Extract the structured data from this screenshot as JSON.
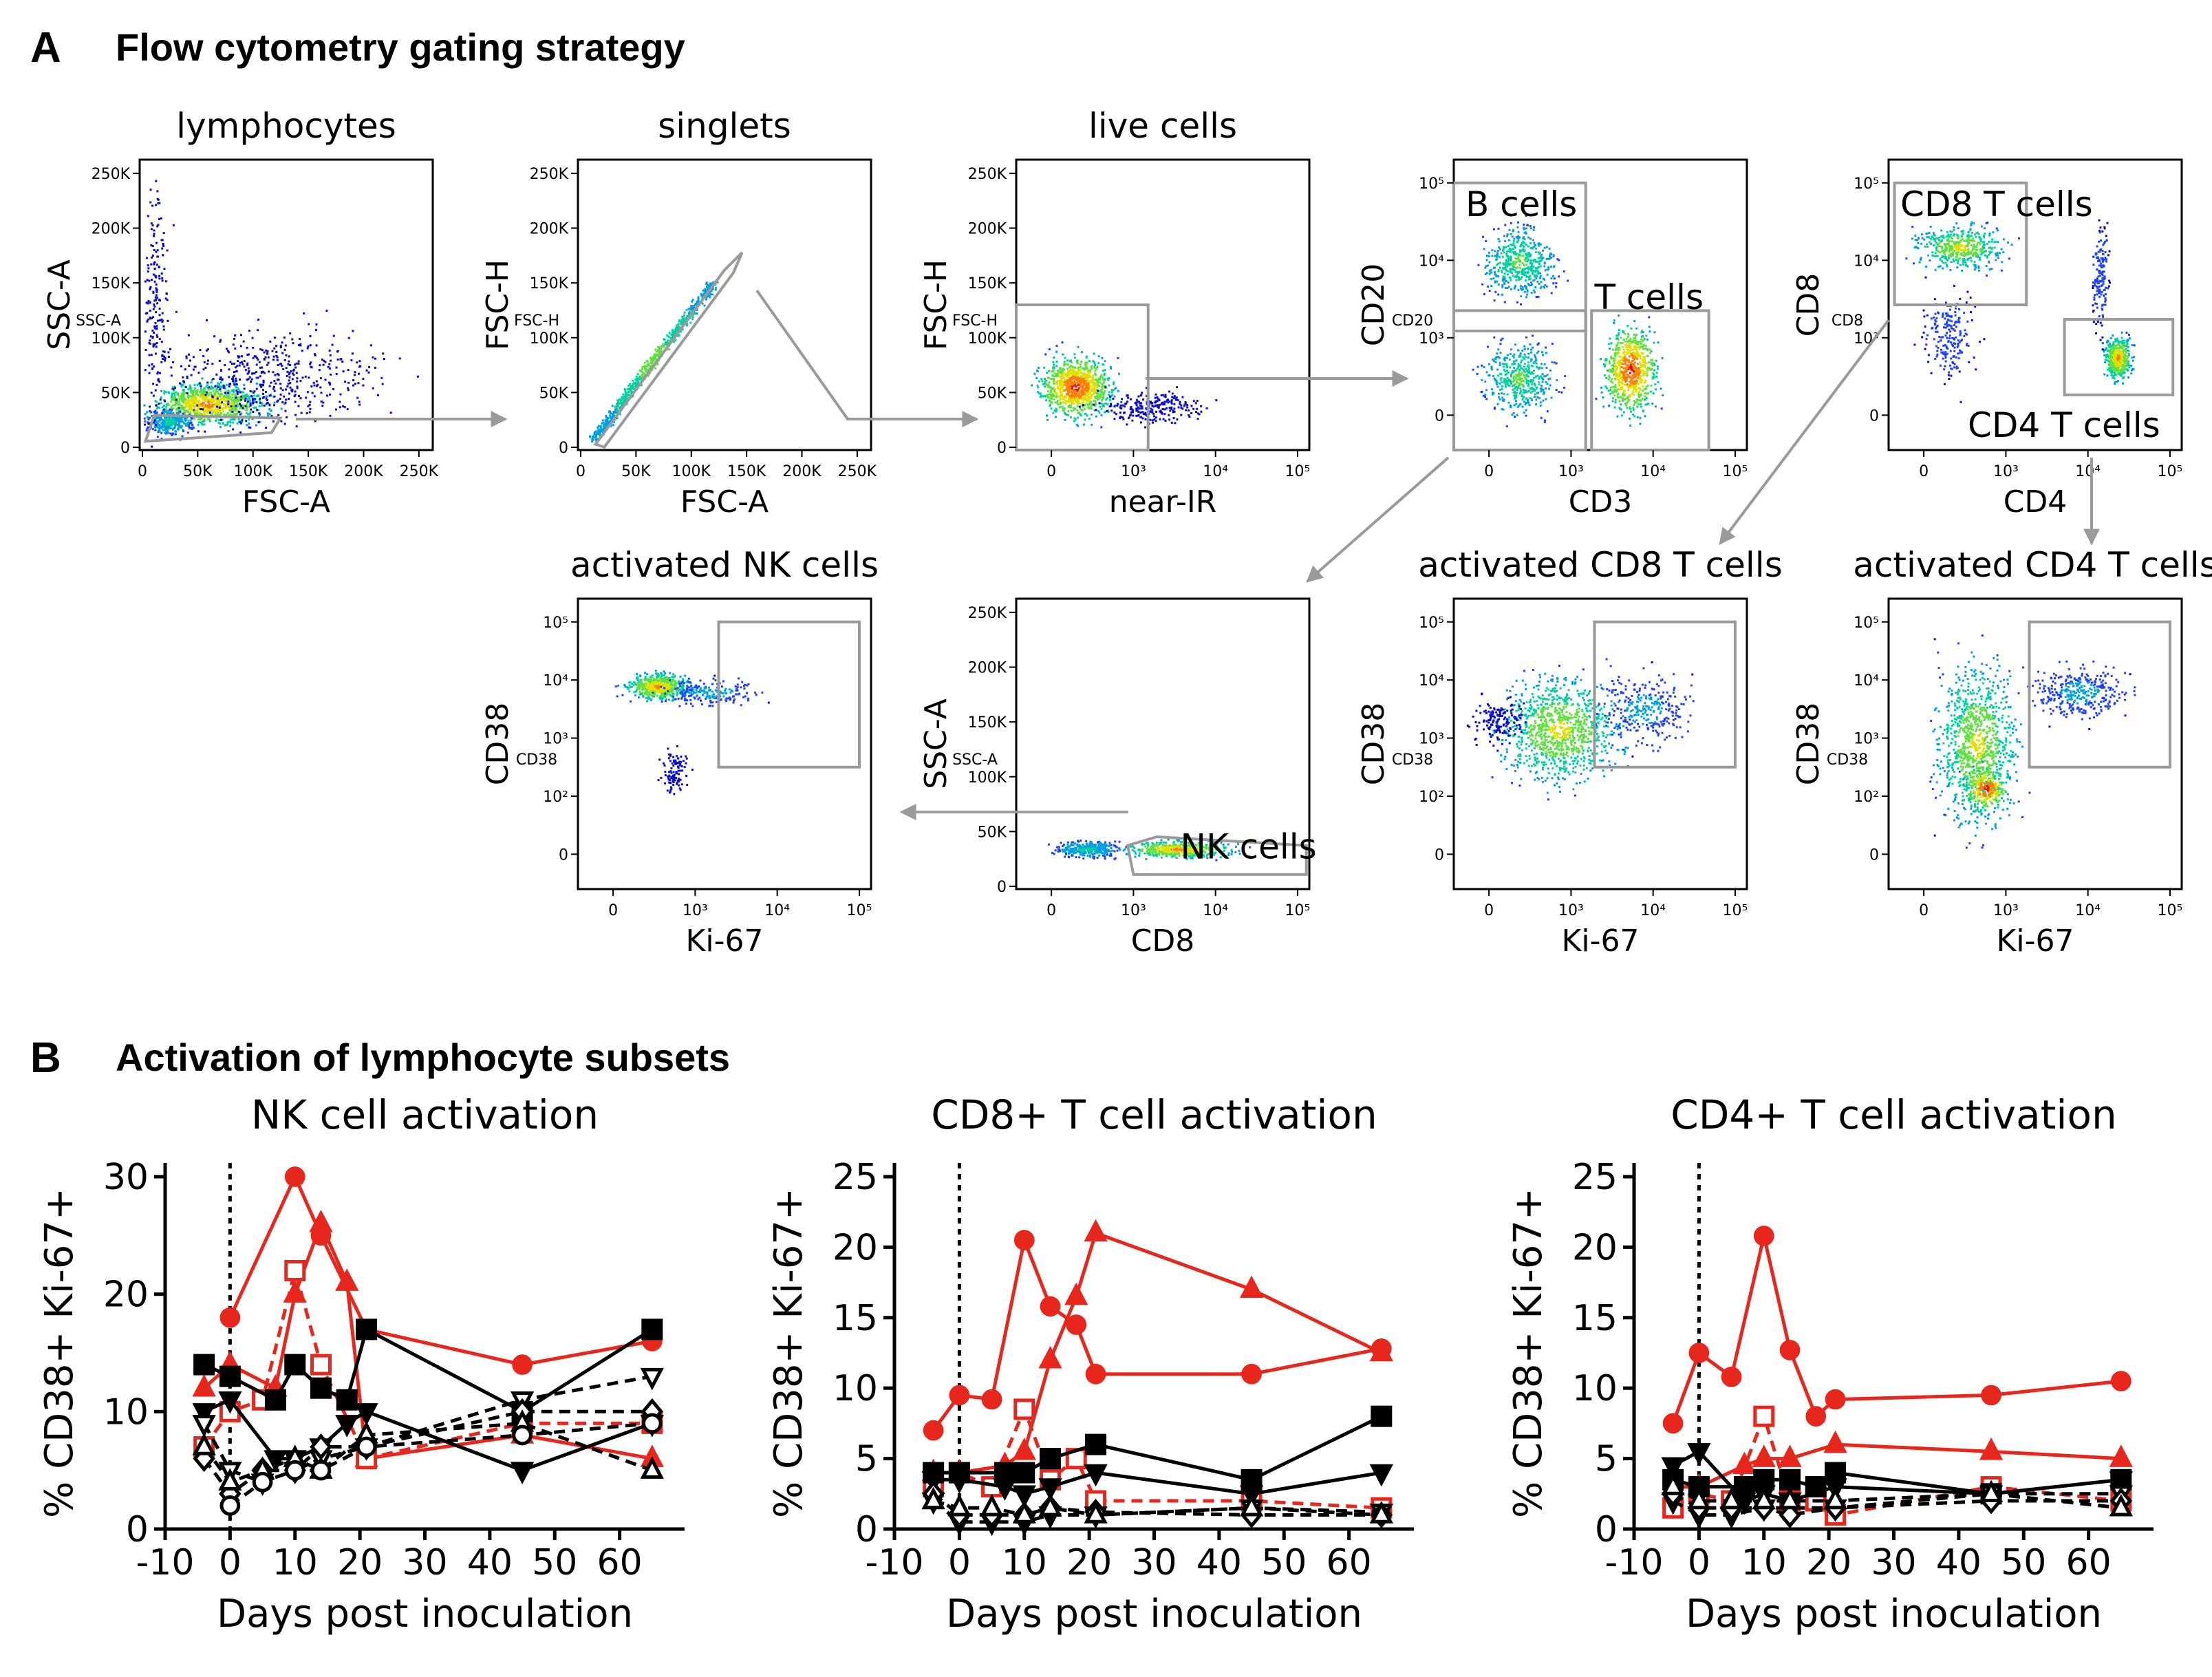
{
  "panelA": {
    "letter": "A",
    "title": "Flow cytometry gating strategy",
    "plots": [
      {
        "id": "lymphocytes",
        "title": "lymphocytes",
        "xlabel": "FSC-A",
        "ylabel": "SSC-A",
        "ylabel2": "SSC-A",
        "xticks": [
          "0",
          "50K",
          "100K",
          "150K",
          "200K",
          "250K"
        ],
        "yticks": [
          "0",
          "50K",
          "100K",
          "150K",
          "200K",
          "250K"
        ]
      },
      {
        "id": "singlets",
        "title": "singlets",
        "xlabel": "FSC-A",
        "ylabel": "FSC-H",
        "ylabel2": "FSC-H",
        "xticks": [
          "0",
          "50K",
          "100K",
          "150K",
          "200K",
          "250K"
        ],
        "yticks": [
          "0",
          "50K",
          "100K",
          "150K",
          "200K",
          "250K"
        ]
      },
      {
        "id": "live",
        "title": "live cells",
        "xlabel": "near-IR",
        "ylabel": "FSC-H",
        "ylabel2": "FSC-H",
        "xticks": [
          "0",
          "10³",
          "10⁴",
          "10⁵"
        ],
        "yticks": [
          "0",
          "50K",
          "100K",
          "150K",
          "200K",
          "250K"
        ]
      },
      {
        "id": "bt",
        "title": "",
        "xlabel": "CD3",
        "ylabel": "CD20",
        "ylabel2": "CD20",
        "gate1": "B cells",
        "gate2": "T cells",
        "xticks": [
          "0",
          "10³",
          "10⁴",
          "10⁵"
        ],
        "yticks": [
          "0",
          "10³",
          "10⁴",
          "10⁵"
        ]
      },
      {
        "id": "cd8cd4",
        "title": "",
        "xlabel": "CD4",
        "ylabel": "CD8",
        "ylabel2": "CD8",
        "gate1": "CD8 T cells",
        "gate2": "CD4 T cells",
        "xticks": [
          "0",
          "10³",
          "10⁴",
          "10⁵"
        ],
        "yticks": [
          "0",
          "10³",
          "10⁴",
          "10⁵"
        ]
      },
      {
        "id": "actnk",
        "title": "activated NK cells",
        "xlabel": "Ki-67",
        "ylabel": "CD38",
        "ylabel2": "CD38",
        "xticks": [
          "0",
          "10³",
          "10⁴",
          "10⁵"
        ],
        "yticks": [
          "0",
          "10²",
          "10³",
          "10⁴",
          "10⁵"
        ]
      },
      {
        "id": "nk",
        "title": "",
        "xlabel": "CD8",
        "ylabel": "SSC-A",
        "ylabel2": "SSC-A",
        "gate1": "NK cells",
        "xticks": [
          "0",
          "10³",
          "10⁴",
          "10⁵"
        ],
        "yticks": [
          "0",
          "50K",
          "100K",
          "150K",
          "200K",
          "250K"
        ]
      },
      {
        "id": "actcd8",
        "title": "activated CD8 T cells",
        "xlabel": "Ki-67",
        "ylabel": "CD38",
        "ylabel2": "CD38",
        "xticks": [
          "0",
          "10³",
          "10⁴",
          "10⁵"
        ],
        "yticks": [
          "0",
          "10²",
          "10³",
          "10⁴",
          "10⁵"
        ]
      },
      {
        "id": "actcd4",
        "title": "activated CD4 T cells",
        "xlabel": "Ki-67",
        "ylabel": "CD38",
        "ylabel2": "CD38",
        "xticks": [
          "0",
          "10³",
          "10⁴",
          "10⁵"
        ],
        "yticks": [
          "0",
          "10²",
          "10³",
          "10⁴",
          "10⁵"
        ]
      }
    ]
  },
  "panelB": {
    "letter": "B",
    "title": "Activation of lymphocyte subsets"
  },
  "colors": {
    "red": "#e8271c",
    "black": "#000000",
    "gate": "#9a9a9a"
  },
  "chart_data": [
    {
      "type": "line",
      "title": "NK cell activation",
      "xlabel": "Days post inoculation",
      "ylabel": "% CD38+ Ki-67+",
      "xlim": [
        -10,
        70
      ],
      "ylim": [
        0,
        30
      ],
      "xticks": [
        "-10",
        "0",
        "10",
        "20",
        "30",
        "40",
        "50",
        "60"
      ],
      "yticks": [
        "0",
        "10",
        "20",
        "30"
      ],
      "inoculation_day": 0,
      "series": [
        {
          "name": "red circle",
          "color": "red",
          "marker": "circle",
          "filled": true,
          "dash": false,
          "x": [
            0,
            10,
            14,
            21,
            45,
            65
          ],
          "y": [
            18,
            30,
            25,
            17,
            14,
            16
          ]
        },
        {
          "name": "red triangle",
          "color": "red",
          "marker": "triangle",
          "filled": true,
          "dash": false,
          "x": [
            -4,
            0,
            7,
            10,
            14,
            18,
            21,
            45,
            65
          ],
          "y": [
            12,
            14,
            12,
            20,
            26,
            21,
            6,
            8,
            6
          ]
        },
        {
          "name": "red open square",
          "color": "red",
          "marker": "square",
          "filled": false,
          "dash": true,
          "x": [
            -4,
            0,
            5,
            10,
            14,
            21,
            45,
            65
          ],
          "y": [
            7,
            10,
            11,
            22,
            14,
            6,
            9,
            9
          ]
        },
        {
          "name": "black square",
          "color": "black",
          "marker": "square",
          "filled": true,
          "dash": false,
          "x": [
            -4,
            0,
            7,
            10,
            14,
            18,
            21,
            45,
            65
          ],
          "y": [
            14,
            13,
            11,
            14,
            12,
            11,
            17,
            10,
            17
          ]
        },
        {
          "name": "black triangle down",
          "color": "black",
          "marker": "triangledown",
          "filled": true,
          "dash": false,
          "x": [
            -4,
            0,
            7,
            10,
            14,
            18,
            21,
            45,
            65
          ],
          "y": [
            10,
            11,
            6,
            6,
            7,
            9,
            10,
            5,
            9
          ]
        },
        {
          "name": "black open triangle down",
          "color": "black",
          "marker": "triangledown",
          "filled": false,
          "dash": true,
          "x": [
            -4,
            0,
            5,
            10,
            14,
            21,
            45,
            65
          ],
          "y": [
            9,
            5,
            4,
            5,
            6,
            7,
            11,
            13
          ]
        },
        {
          "name": "black open diamond",
          "color": "black",
          "marker": "diamond",
          "filled": false,
          "dash": true,
          "x": [
            -4,
            0,
            5,
            10,
            14,
            21,
            45,
            65
          ],
          "y": [
            6,
            3,
            5,
            5,
            7,
            7,
            10,
            10
          ]
        },
        {
          "name": "black open triangle",
          "color": "black",
          "marker": "triangle",
          "filled": false,
          "dash": true,
          "x": [
            -4,
            0,
            5,
            10,
            14,
            21,
            45,
            65
          ],
          "y": [
            7,
            4,
            5,
            6,
            5,
            8,
            9,
            5
          ]
        },
        {
          "name": "black open circle",
          "color": "black",
          "marker": "circle",
          "filled": false,
          "dash": true,
          "x": [
            0,
            5,
            10,
            14,
            21,
            45,
            65
          ],
          "y": [
            2,
            4,
            5,
            5,
            7,
            8,
            9
          ]
        }
      ]
    },
    {
      "type": "line",
      "title": "CD8+ T cell activation",
      "xlabel": "Days post inoculation",
      "ylabel": "% CD38+ Ki-67+",
      "xlim": [
        -10,
        70
      ],
      "ylim": [
        0,
        25
      ],
      "xticks": [
        "-10",
        "0",
        "10",
        "20",
        "30",
        "40",
        "50",
        "60"
      ],
      "yticks": [
        "0",
        "5",
        "10",
        "15",
        "20",
        "25"
      ],
      "inoculation_day": 0,
      "series": [
        {
          "name": "red circle",
          "color": "red",
          "marker": "circle",
          "filled": true,
          "dash": false,
          "x": [
            -4,
            0,
            5,
            10,
            14,
            18,
            21,
            45,
            65
          ],
          "y": [
            7,
            9.5,
            9.2,
            20.5,
            15.8,
            14.5,
            11,
            11,
            12.8
          ]
        },
        {
          "name": "red triangle",
          "color": "red",
          "marker": "triangle",
          "filled": true,
          "dash": false,
          "x": [
            -4,
            0,
            7,
            10,
            14,
            18,
            21,
            45,
            65
          ],
          "y": [
            4,
            4,
            4.5,
            5.5,
            12,
            16.5,
            21,
            17,
            12.5
          ]
        },
        {
          "name": "red open square",
          "color": "red",
          "marker": "square",
          "filled": false,
          "dash": true,
          "x": [
            -4,
            0,
            5,
            10,
            14,
            18,
            21,
            45,
            65
          ],
          "y": [
            3,
            4,
            3,
            8.5,
            3.5,
            5,
            2,
            2,
            1.5
          ]
        },
        {
          "name": "black square",
          "color": "black",
          "marker": "square",
          "filled": true,
          "dash": false,
          "x": [
            -4,
            0,
            7,
            10,
            14,
            21,
            45,
            65
          ],
          "y": [
            4,
            4,
            4,
            4,
            5,
            6,
            3.5,
            8
          ]
        },
        {
          "name": "black triangle down",
          "color": "black",
          "marker": "triangledown",
          "filled": true,
          "dash": false,
          "x": [
            -4,
            0,
            7,
            10,
            14,
            21,
            45,
            65
          ],
          "y": [
            3.5,
            3.5,
            3,
            2.5,
            3,
            4,
            2.5,
            4
          ]
        },
        {
          "name": "black open triangle down",
          "color": "black",
          "marker": "triangledown",
          "filled": false,
          "dash": true,
          "x": [
            -4,
            0,
            5,
            10,
            14,
            21,
            45,
            65
          ],
          "y": [
            2,
            0.5,
            0.5,
            0.5,
            1,
            1,
            1.5,
            1.2
          ]
        },
        {
          "name": "black open diamond",
          "color": "black",
          "marker": "diamond",
          "filled": false,
          "dash": true,
          "x": [
            -4,
            0,
            5,
            10,
            14,
            21,
            45,
            65
          ],
          "y": [
            2.5,
            1,
            1,
            1,
            1.5,
            1.2,
            1,
            1
          ]
        },
        {
          "name": "black open triangle",
          "color": "black",
          "marker": "triangle",
          "filled": false,
          "dash": true,
          "x": [
            -4,
            0,
            5,
            10,
            14,
            21,
            45,
            65
          ],
          "y": [
            2,
            1.5,
            1.5,
            1,
            1.5,
            1,
            1.5,
            1
          ]
        }
      ]
    },
    {
      "type": "line",
      "title": "CD4+ T cell activation",
      "xlabel": "Days post inoculation",
      "ylabel": "% CD38+ Ki-67+",
      "xlim": [
        -10,
        70
      ],
      "ylim": [
        0,
        25
      ],
      "xticks": [
        "-10",
        "0",
        "10",
        "20",
        "30",
        "40",
        "50",
        "60"
      ],
      "yticks": [
        "0",
        "5",
        "10",
        "15",
        "20",
        "25"
      ],
      "inoculation_day": 0,
      "series": [
        {
          "name": "red circle",
          "color": "red",
          "marker": "circle",
          "filled": true,
          "dash": false,
          "x": [
            -4,
            0,
            5,
            10,
            14,
            18,
            21,
            45,
            65
          ],
          "y": [
            7.5,
            12.5,
            10.8,
            20.8,
            12.7,
            8,
            9.2,
            9.5,
            10.5
          ]
        },
        {
          "name": "red triangle",
          "color": "red",
          "marker": "triangle",
          "filled": true,
          "dash": false,
          "x": [
            -4,
            0,
            7,
            10,
            14,
            21,
            45,
            65
          ],
          "y": [
            3,
            3,
            4.5,
            5,
            5,
            6,
            5.5,
            5
          ]
        },
        {
          "name": "red open square",
          "color": "red",
          "marker": "square",
          "filled": false,
          "dash": true,
          "x": [
            -4,
            0,
            5,
            10,
            14,
            18,
            21,
            45,
            65
          ],
          "y": [
            1.5,
            2.5,
            2,
            8,
            2,
            2,
            1,
            3,
            2
          ]
        },
        {
          "name": "black square",
          "color": "black",
          "marker": "square",
          "filled": true,
          "dash": false,
          "x": [
            -4,
            0,
            7,
            10,
            14,
            18,
            21,
            45,
            65
          ],
          "y": [
            3.5,
            3,
            3,
            3.5,
            3.5,
            3,
            4,
            2.5,
            3.5
          ]
        },
        {
          "name": "black triangle down",
          "color": "black",
          "marker": "triangledown",
          "filled": true,
          "dash": false,
          "x": [
            -4,
            0,
            7,
            10,
            14,
            21,
            45,
            65
          ],
          "y": [
            4.5,
            5.5,
            2,
            2.5,
            2,
            3,
            2.5,
            3.5
          ]
        },
        {
          "name": "black open triangle down",
          "color": "black",
          "marker": "triangledown",
          "filled": false,
          "dash": true,
          "x": [
            -4,
            0,
            5,
            10,
            14,
            21,
            45,
            65
          ],
          "y": [
            2,
            1,
            1,
            1.5,
            1.5,
            1.5,
            2.5,
            2.5
          ]
        },
        {
          "name": "black open diamond",
          "color": "black",
          "marker": "diamond",
          "filled": false,
          "dash": true,
          "x": [
            -4,
            0,
            5,
            10,
            14,
            21,
            45,
            65
          ],
          "y": [
            2.5,
            1.5,
            1.5,
            1.5,
            1,
            1.5,
            2,
            2
          ]
        },
        {
          "name": "black open triangle",
          "color": "black",
          "marker": "triangle",
          "filled": false,
          "dash": true,
          "x": [
            -4,
            0,
            5,
            10,
            14,
            21,
            45,
            65
          ],
          "y": [
            3,
            2,
            2,
            2,
            2,
            2,
            2.5,
            1.5
          ]
        }
      ]
    }
  ]
}
